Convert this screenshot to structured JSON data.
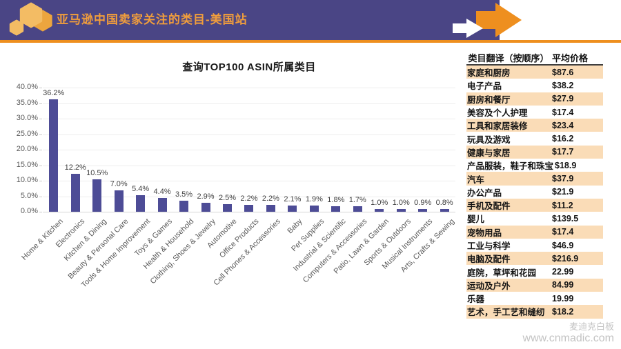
{
  "header": {
    "title": "亚马逊中国卖家关注的类目-美国站"
  },
  "chart_data": {
    "type": "bar",
    "title": "查询TOP100 ASIN所属类目",
    "categories": [
      "Home & Kitchen",
      "Electronics",
      "Kitchen & Dining",
      "Beauty & Personal Care",
      "Tools & Home Improvement",
      "Toys & Games",
      "Health & Household",
      "Clothing, Shoes & Jewelry",
      "Automotive",
      "Office Products",
      "Cell Phones & Accessories",
      "Baby",
      "Pet Supplies",
      "Industrial & Scientific",
      "Computers & Accessories",
      "Patio, Lawn & Garden",
      "Sports & Outdoors",
      "Musical Instruments",
      "Arts, Crafts & Sewing"
    ],
    "values": [
      36.2,
      12.2,
      10.5,
      7.0,
      5.4,
      4.4,
      3.5,
      2.9,
      2.5,
      2.2,
      2.2,
      2.1,
      1.9,
      1.8,
      1.7,
      1.0,
      1.0,
      0.9,
      0.8
    ],
    "data_labels": [
      "36.2%",
      "12.2%",
      "10.5%",
      "7.0%",
      "5.4%",
      "4.4%",
      "3.5%",
      "2.9%",
      "2.5%",
      "2.2%",
      "2.2%",
      "2.1%",
      "1.9%",
      "1.8%",
      "1.7%",
      "1.0%",
      "1.0%",
      "0.9%",
      "0.8%"
    ],
    "xlabel": "",
    "ylabel": "",
    "ylim": [
      0,
      40
    ],
    "ytick_step": 5,
    "ytick_labels": [
      "0.0%",
      "5.0%",
      "10.0%",
      "15.0%",
      "20.0%",
      "25.0%",
      "30.0%",
      "35.0%",
      "40.0%"
    ],
    "grid": true,
    "legend": "none",
    "bar_color": "#4d4c96"
  },
  "table": {
    "headers": [
      "类目翻译（按顺序）",
      "平均价格"
    ],
    "rows": [
      [
        "家庭和厨房",
        "$87.6"
      ],
      [
        "电子产品",
        "$38.2"
      ],
      [
        "厨房和餐厅",
        "$27.9"
      ],
      [
        "美容及个人护理",
        "$17.4"
      ],
      [
        "工具和家居装修",
        "$23.4"
      ],
      [
        "玩具及游戏",
        "$16.2"
      ],
      [
        "健康与家居",
        "$17.7"
      ],
      [
        "产品服装，鞋子和珠宝",
        "$18.9"
      ],
      [
        "汽车",
        "$37.9"
      ],
      [
        "办公产品",
        "$21.9"
      ],
      [
        "手机及配件",
        "$11.2"
      ],
      [
        "婴儿",
        "$139.5"
      ],
      [
        "宠物用品",
        "$17.4"
      ],
      [
        "工业与科学",
        "$46.9"
      ],
      [
        "电脑及配件",
        "$216.9"
      ],
      [
        "庭院，草坪和花园",
        "22.99"
      ],
      [
        "运动及户外",
        "84.99"
      ],
      [
        "乐器",
        "19.99"
      ],
      [
        "艺术，手工艺和缝纫",
        "$18.2"
      ]
    ],
    "stripe_color": "#fadcb7"
  },
  "watermark": {
    "line1": "麦迪克白板",
    "line2": "www.cnmadic.com"
  },
  "colors": {
    "header_bg": "#4a4585",
    "accent_orange": "#ee8f1f",
    "title_orange": "#f09d3c",
    "hex_light": "#f3bc64",
    "hex_dark": "#eca53e",
    "bar_purple": "#4d4c96"
  }
}
